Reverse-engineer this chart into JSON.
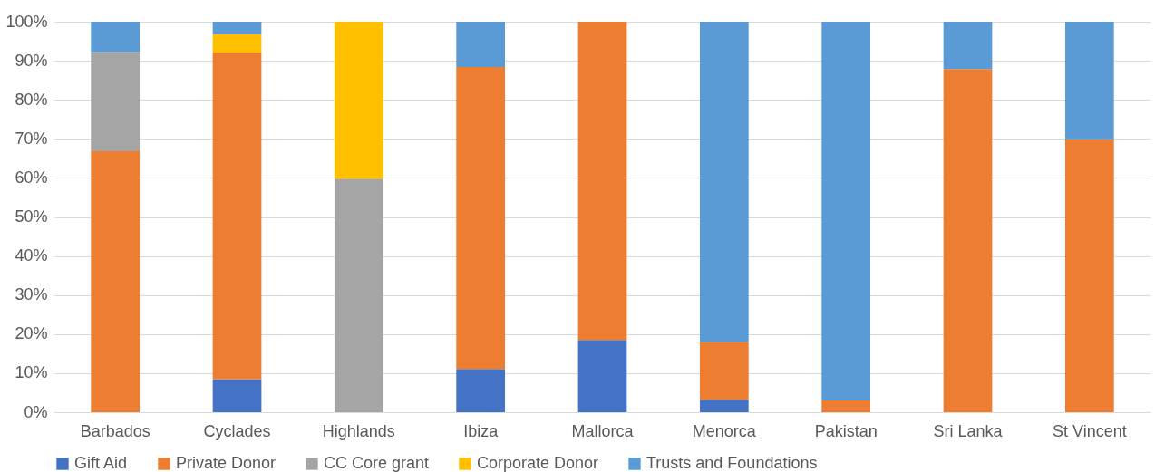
{
  "chart_data": {
    "type": "bar",
    "stacked": true,
    "categories": [
      "Barbados",
      "Cyclades",
      "Highlands",
      "Ibiza",
      "Mallorca",
      "Menorca",
      "Pakistan",
      "Sri Lanka",
      "St Vincent"
    ],
    "series": [
      {
        "name": "Gift Aid",
        "color": "#4472c4",
        "values": [
          null,
          8.4,
          null,
          11.1,
          18.5,
          3.2,
          null,
          null,
          null
        ]
      },
      {
        "name": "Private Donor",
        "color": "#ed7d31",
        "values": [
          66.8,
          83.7,
          null,
          77.3,
          81.5,
          14.8,
          3.0,
          87.9,
          69.9
        ]
      },
      {
        "name": "CC Core grant",
        "color": "#a5a5a5",
        "values": [
          25.4,
          null,
          59.8,
          null,
          null,
          null,
          null,
          null,
          null
        ]
      },
      {
        "name": "Corporate Donor",
        "color": "#ffc000",
        "values": [
          null,
          4.7,
          40.2,
          null,
          null,
          null,
          null,
          null,
          null
        ]
      },
      {
        "name": "Trusts and Foundations",
        "color": "#5b9bd5",
        "values": [
          7.8,
          3.2,
          null,
          11.6,
          null,
          82.0,
          97.0,
          12.1,
          30.1
        ]
      }
    ],
    "ylim": [
      0,
      100
    ],
    "yticks": [
      {
        "value": 0,
        "label": "0%"
      },
      {
        "value": 10,
        "label": "10%"
      },
      {
        "value": 20,
        "label": "20%"
      },
      {
        "value": 30,
        "label": "30%"
      },
      {
        "value": 40,
        "label": "40%"
      },
      {
        "value": 50,
        "label": "50%"
      },
      {
        "value": 60,
        "label": "60%"
      },
      {
        "value": 70,
        "label": "70%"
      },
      {
        "value": 80,
        "label": "80%"
      },
      {
        "value": 90,
        "label": "90%"
      },
      {
        "value": 100,
        "label": "100%"
      }
    ],
    "grid": "y",
    "legend": "bottom"
  }
}
